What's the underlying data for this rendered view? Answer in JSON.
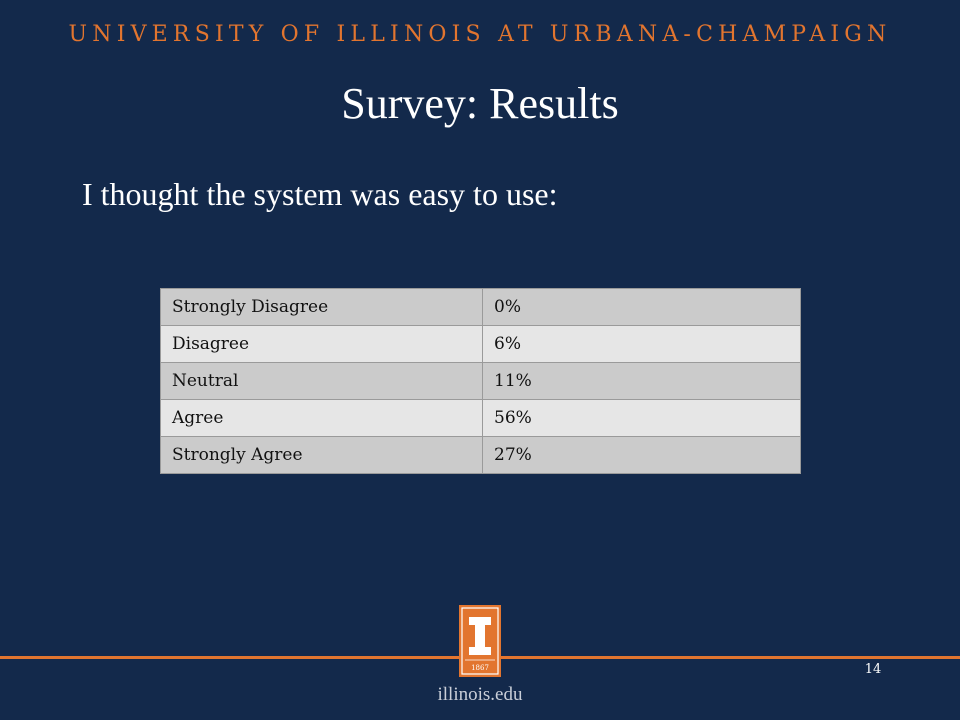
{
  "header": {
    "university": "UNIVERSITY OF ILLINOIS AT URBANA-CHAMPAIGN"
  },
  "slide": {
    "title": "Survey: Results",
    "question": "I thought the system was easy to use:"
  },
  "results": [
    {
      "label": "Strongly Disagree",
      "value": "0%"
    },
    {
      "label": "Disagree",
      "value": "6%"
    },
    {
      "label": "Neutral",
      "value": "11%"
    },
    {
      "label": "Agree",
      "value": "56%"
    },
    {
      "label": "Strongly Agree",
      "value": "27%"
    }
  ],
  "footer": {
    "logo_year": "1867",
    "page_number": "14",
    "url": "illinois.edu"
  },
  "colors": {
    "background": "#13294b",
    "accent_orange": "#e2752f"
  },
  "icons": {
    "logo": "block-i-logo-icon"
  }
}
